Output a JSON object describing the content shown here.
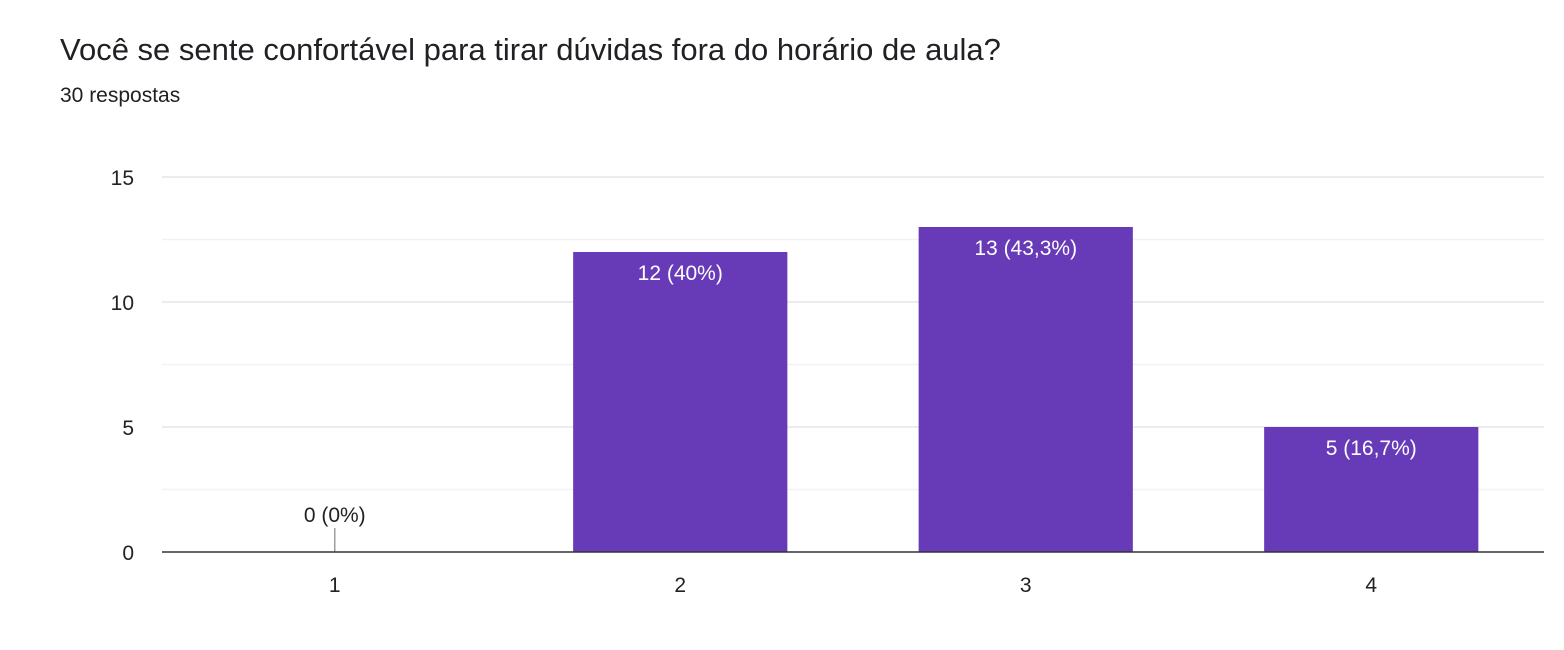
{
  "title": "Você se sente confortável para tirar dúvidas fora do horário de aula?",
  "subtitle": "30 respostas",
  "chart_data": {
    "type": "bar",
    "categories": [
      "1",
      "2",
      "3",
      "4"
    ],
    "values": [
      0,
      12,
      13,
      5
    ],
    "data_labels": [
      "0 (0%)",
      "12 (40%)",
      "13 (43,3%)",
      "5 (16,7%)"
    ],
    "ylim": [
      0,
      15
    ],
    "yticks": [
      0,
      5,
      10,
      15
    ],
    "grid": true,
    "colors": {
      "bar": "#673ab7",
      "label_inside": "#ffffff",
      "label_outside": "#222222"
    }
  }
}
